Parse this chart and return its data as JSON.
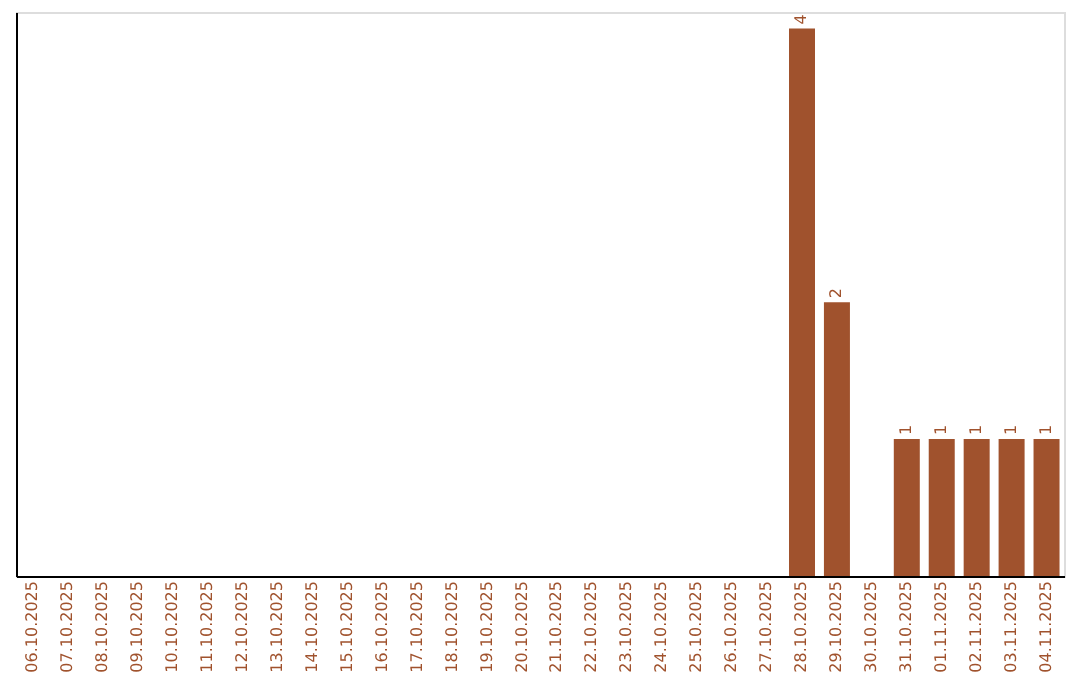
{
  "chart_data": {
    "type": "bar",
    "categories": [
      "06.10.2025",
      "07.10.2025",
      "08.10.2025",
      "09.10.2025",
      "10.10.2025",
      "11.10.2025",
      "12.10.2025",
      "13.10.2025",
      "14.10.2025",
      "15.10.2025",
      "16.10.2025",
      "17.10.2025",
      "18.10.2025",
      "19.10.2025",
      "20.10.2025",
      "21.10.2025",
      "22.10.2025",
      "23.10.2025",
      "24.10.2025",
      "25.10.2025",
      "26.10.2025",
      "27.10.2025",
      "28.10.2025",
      "29.10.2025",
      "30.10.2025",
      "31.10.2025",
      "01.11.2025",
      "02.11.2025",
      "03.11.2025",
      "04.11.2025"
    ],
    "values": [
      null,
      null,
      null,
      null,
      null,
      null,
      null,
      null,
      null,
      null,
      null,
      null,
      null,
      null,
      null,
      null,
      null,
      null,
      null,
      null,
      null,
      null,
      4,
      2,
      null,
      1,
      1,
      1,
      1,
      1
    ],
    "value_labels": [
      null,
      null,
      null,
      null,
      null,
      null,
      null,
      null,
      null,
      null,
      null,
      null,
      null,
      null,
      null,
      null,
      null,
      null,
      null,
      null,
      null,
      null,
      "4",
      "2",
      null,
      "1",
      "1",
      "1",
      "1",
      "1"
    ],
    "color": "#a0522d",
    "tick_labels": "x",
    "grid": false,
    "legend": false
  }
}
